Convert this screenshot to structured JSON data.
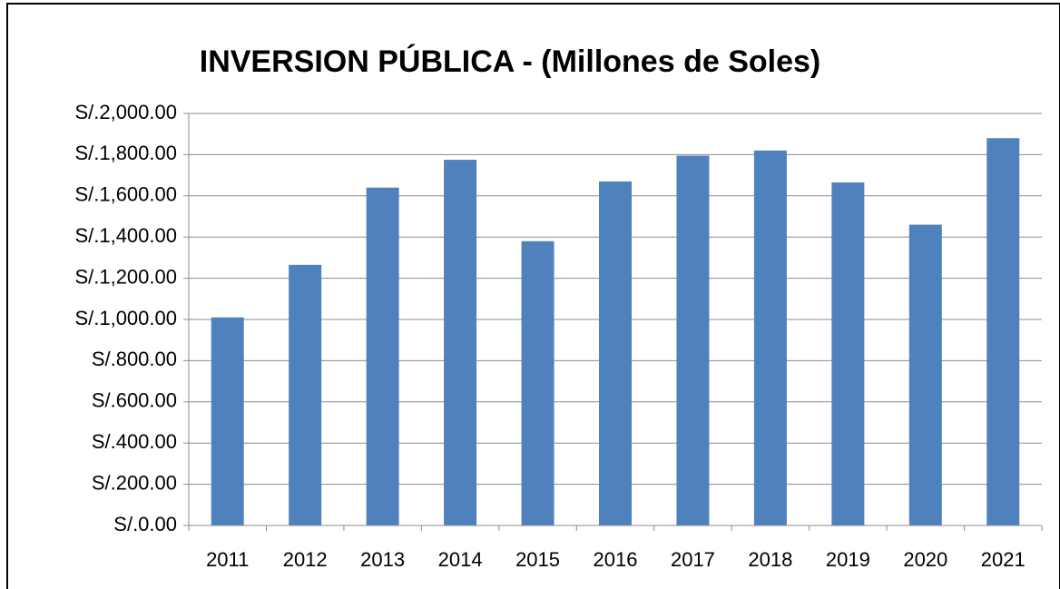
{
  "chart_data": {
    "type": "bar",
    "title": "INVERSION PÚBLICA - (Millones de Soles)",
    "categories": [
      "2011",
      "2012",
      "2013",
      "2014",
      "2015",
      "2016",
      "2017",
      "2018",
      "2019",
      "2020",
      "2021"
    ],
    "values": [
      1010,
      1265,
      1640,
      1775,
      1380,
      1670,
      1795,
      1820,
      1665,
      1460,
      1880
    ],
    "color": "#4f81bd",
    "ylim": [
      0,
      2000
    ],
    "yticks": [
      {
        "value": 0,
        "label": "S/.0.00"
      },
      {
        "value": 200,
        "label": "S/.200.00"
      },
      {
        "value": 400,
        "label": "S/.400.00"
      },
      {
        "value": 600,
        "label": "S/.600.00"
      },
      {
        "value": 800,
        "label": "S/.800.00"
      },
      {
        "value": 1000,
        "label": "S/.1,000.00"
      },
      {
        "value": 1200,
        "label": "S/.1,200.00"
      },
      {
        "value": 1400,
        "label": "S/.1,400.00"
      },
      {
        "value": 1600,
        "label": "S/.1,600.00"
      },
      {
        "value": 1800,
        "label": "S/.1,800.00"
      },
      {
        "value": 2000,
        "label": "S/.2,000.00"
      }
    ],
    "grid": true
  }
}
